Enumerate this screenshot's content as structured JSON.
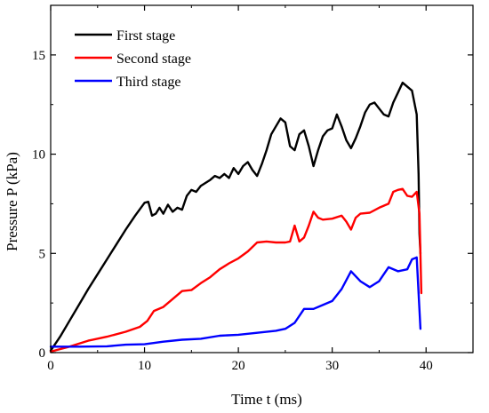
{
  "chart_data": {
    "type": "line",
    "title": "",
    "xlabel": "Time t (ms)",
    "ylabel": "Pressure P (kPa)",
    "xlim": [
      0,
      45
    ],
    "ylim": [
      0,
      17.5
    ],
    "xticks": [
      0,
      10,
      20,
      30,
      40
    ],
    "yticks": [
      0,
      5,
      10,
      15
    ],
    "grid": false,
    "legend_position": "top-left",
    "series": [
      {
        "name": "First stage",
        "color": "#000000",
        "points": [
          [
            0,
            0.1
          ],
          [
            1,
            0.8
          ],
          [
            2,
            1.6
          ],
          [
            3,
            2.4
          ],
          [
            4,
            3.2
          ],
          [
            5,
            3.95
          ],
          [
            6,
            4.7
          ],
          [
            7,
            5.45
          ],
          [
            8,
            6.2
          ],
          [
            9,
            6.9
          ],
          [
            10,
            7.55
          ],
          [
            10.4,
            7.6
          ],
          [
            10.8,
            6.9
          ],
          [
            11.2,
            7.0
          ],
          [
            11.6,
            7.3
          ],
          [
            12,
            7.0
          ],
          [
            12.5,
            7.45
          ],
          [
            13,
            7.1
          ],
          [
            13.5,
            7.3
          ],
          [
            14,
            7.2
          ],
          [
            14.5,
            7.9
          ],
          [
            15,
            8.2
          ],
          [
            15.5,
            8.1
          ],
          [
            16,
            8.4
          ],
          [
            17,
            8.7
          ],
          [
            17.5,
            8.9
          ],
          [
            18,
            8.8
          ],
          [
            18.5,
            9.0
          ],
          [
            19,
            8.8
          ],
          [
            19.5,
            9.3
          ],
          [
            20,
            9.0
          ],
          [
            20.5,
            9.4
          ],
          [
            21,
            9.6
          ],
          [
            21.5,
            9.2
          ],
          [
            22,
            8.9
          ],
          [
            22.5,
            9.5
          ],
          [
            23,
            10.2
          ],
          [
            23.5,
            11.0
          ],
          [
            24,
            11.4
          ],
          [
            24.5,
            11.8
          ],
          [
            25,
            11.6
          ],
          [
            25.5,
            10.4
          ],
          [
            26,
            10.2
          ],
          [
            26.5,
            11.0
          ],
          [
            27,
            11.2
          ],
          [
            27.5,
            10.4
          ],
          [
            28,
            9.4
          ],
          [
            28.5,
            10.2
          ],
          [
            29,
            10.9
          ],
          [
            29.5,
            11.2
          ],
          [
            30,
            11.3
          ],
          [
            30.5,
            12.0
          ],
          [
            31,
            11.4
          ],
          [
            31.5,
            10.7
          ],
          [
            32,
            10.3
          ],
          [
            32.5,
            10.8
          ],
          [
            33,
            11.4
          ],
          [
            33.5,
            12.1
          ],
          [
            34,
            12.5
          ],
          [
            34.5,
            12.6
          ],
          [
            35,
            12.3
          ],
          [
            35.5,
            12.0
          ],
          [
            36,
            11.9
          ],
          [
            36.5,
            12.6
          ],
          [
            37,
            13.1
          ],
          [
            37.5,
            13.6
          ],
          [
            38,
            13.4
          ],
          [
            38.5,
            13.2
          ],
          [
            39,
            12.0
          ],
          [
            39.2,
            9.0
          ],
          [
            39.3,
            6.0
          ],
          [
            39.4,
            5.0
          ]
        ]
      },
      {
        "name": "Second stage",
        "color": "#ff0000",
        "points": [
          [
            0,
            0.05
          ],
          [
            2,
            0.3
          ],
          [
            4,
            0.6
          ],
          [
            6,
            0.8
          ],
          [
            8,
            1.05
          ],
          [
            9.5,
            1.3
          ],
          [
            10.3,
            1.6
          ],
          [
            11,
            2.1
          ],
          [
            12,
            2.3
          ],
          [
            13,
            2.7
          ],
          [
            14,
            3.1
          ],
          [
            15,
            3.15
          ],
          [
            16,
            3.5
          ],
          [
            17,
            3.8
          ],
          [
            18,
            4.2
          ],
          [
            19,
            4.5
          ],
          [
            20,
            4.75
          ],
          [
            21,
            5.1
          ],
          [
            22,
            5.55
          ],
          [
            23,
            5.6
          ],
          [
            24,
            5.55
          ],
          [
            25,
            5.55
          ],
          [
            25.5,
            5.6
          ],
          [
            26,
            6.4
          ],
          [
            26.5,
            5.6
          ],
          [
            27,
            5.8
          ],
          [
            27.5,
            6.4
          ],
          [
            28,
            7.1
          ],
          [
            28.5,
            6.8
          ],
          [
            29,
            6.7
          ],
          [
            30,
            6.75
          ],
          [
            31,
            6.9
          ],
          [
            31.5,
            6.6
          ],
          [
            32,
            6.2
          ],
          [
            32.5,
            6.8
          ],
          [
            33,
            7.0
          ],
          [
            34,
            7.05
          ],
          [
            35,
            7.3
          ],
          [
            36,
            7.5
          ],
          [
            36.5,
            8.1
          ],
          [
            37,
            8.2
          ],
          [
            37.5,
            8.25
          ],
          [
            38,
            7.9
          ],
          [
            38.5,
            7.85
          ],
          [
            39,
            8.1
          ],
          [
            39.3,
            7.0
          ],
          [
            39.5,
            3.0
          ]
        ]
      },
      {
        "name": "Third stage",
        "color": "#0000ff",
        "points": [
          [
            0,
            0.3
          ],
          [
            3,
            0.3
          ],
          [
            6,
            0.32
          ],
          [
            8,
            0.4
          ],
          [
            10,
            0.42
          ],
          [
            12,
            0.55
          ],
          [
            14,
            0.65
          ],
          [
            16,
            0.7
          ],
          [
            18,
            0.85
          ],
          [
            20,
            0.9
          ],
          [
            22,
            1.0
          ],
          [
            24,
            1.1
          ],
          [
            25,
            1.2
          ],
          [
            26,
            1.5
          ],
          [
            27,
            2.2
          ],
          [
            28,
            2.2
          ],
          [
            29,
            2.4
          ],
          [
            30,
            2.6
          ],
          [
            31,
            3.2
          ],
          [
            32,
            4.1
          ],
          [
            33,
            3.6
          ],
          [
            34,
            3.3
          ],
          [
            35,
            3.6
          ],
          [
            36,
            4.3
          ],
          [
            37,
            4.1
          ],
          [
            38,
            4.2
          ],
          [
            38.5,
            4.7
          ],
          [
            39,
            4.8
          ],
          [
            39.2,
            3.0
          ],
          [
            39.4,
            1.2
          ]
        ]
      }
    ]
  }
}
